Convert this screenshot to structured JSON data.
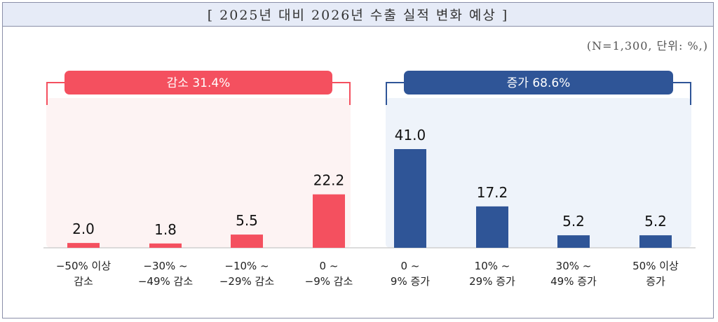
{
  "title": "[ 2025년 대비 2026년 수출 실적 변화 예상 ]",
  "note": "(N=1,300, 단위: %,)",
  "colors": {
    "decrease": "#f4505f",
    "increase": "#2f5597",
    "decrease_bg": "#fdf3f3",
    "increase_bg": "#eef3fa"
  },
  "chart_data": {
    "type": "bar",
    "groups": [
      {
        "label": "감소 31.4%",
        "color": "#f4505f",
        "category_indices": [
          0,
          1,
          2,
          3
        ]
      },
      {
        "label": "증가 68.6%",
        "color": "#2f5597",
        "category_indices": [
          4,
          5,
          6,
          7
        ]
      }
    ],
    "categories": [
      [
        "−50% 이상",
        "감소"
      ],
      [
        "−30% ~",
        "−49% 감소"
      ],
      [
        "−10% ~",
        "−29% 감소"
      ],
      [
        "0 ~",
        "−9% 감소"
      ],
      [
        "0 ~",
        "9% 증가"
      ],
      [
        "10% ~",
        "29% 증가"
      ],
      [
        "30% ~",
        "49% 증가"
      ],
      [
        "50% 이상",
        "증가"
      ]
    ],
    "values": [
      2.0,
      1.8,
      5.5,
      22.2,
      41.0,
      17.2,
      5.2,
      5.2
    ],
    "value_labels": [
      "2.0",
      "1.8",
      "5.5",
      "22.2",
      "41.0",
      "17.2",
      "5.2",
      "5.2"
    ],
    "ylim": [
      0,
      41.0
    ]
  }
}
